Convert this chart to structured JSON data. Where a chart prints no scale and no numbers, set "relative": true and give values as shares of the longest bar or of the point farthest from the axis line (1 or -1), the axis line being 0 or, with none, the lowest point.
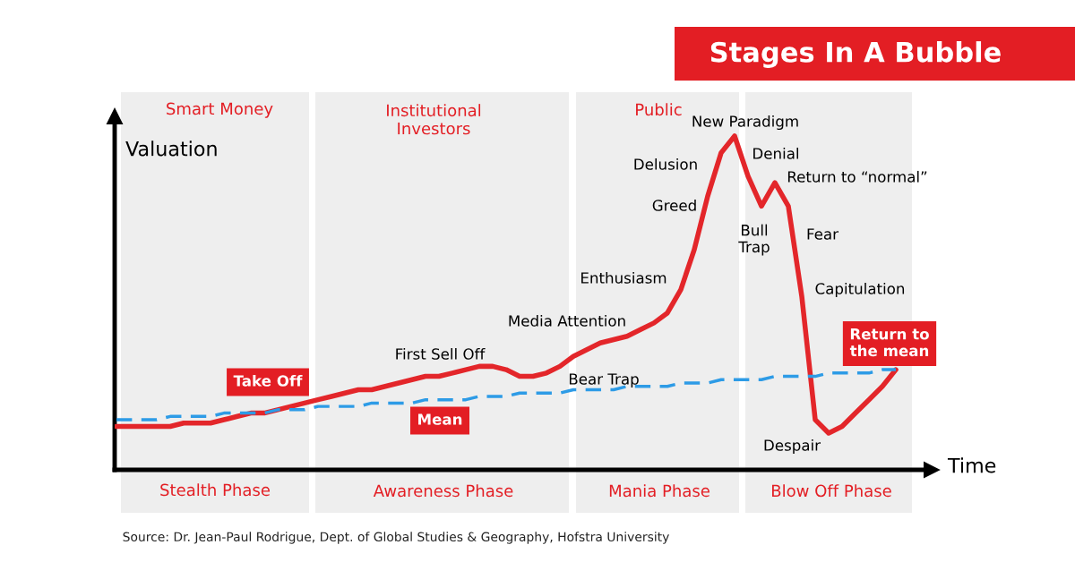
{
  "chart_data": {
    "type": "line",
    "relative": true,
    "title": "Stages In A Bubble",
    "xlabel": "Time",
    "ylabel": "Valuation",
    "categories": [
      null,
      null,
      null,
      null,
      null,
      null,
      null,
      null,
      null,
      null,
      null,
      null,
      null,
      null,
      null,
      null,
      null,
      null,
      null,
      null,
      null,
      null,
      null,
      null,
      null,
      null,
      null,
      null,
      null,
      null,
      null,
      null,
      null,
      null,
      null,
      null,
      null,
      null,
      null,
      null,
      null,
      null,
      null,
      null,
      null,
      null,
      null,
      null,
      null,
      null,
      null,
      null,
      null,
      null,
      null,
      null,
      null,
      null,
      null
    ],
    "series": [
      {
        "color": "#e3262a",
        "line_style": "solid",
        "values": [
          0.13,
          0.13,
          0.13,
          0.13,
          0.13,
          0.14,
          0.14,
          0.14,
          0.15,
          0.16,
          0.17,
          0.17,
          0.18,
          0.19,
          0.2,
          0.21,
          0.22,
          0.23,
          0.24,
          0.24,
          0.25,
          0.26,
          0.27,
          0.28,
          0.28,
          0.29,
          0.3,
          0.31,
          0.31,
          0.3,
          0.28,
          0.28,
          0.29,
          0.31,
          0.34,
          0.36,
          0.38,
          0.39,
          0.4,
          0.42,
          0.44,
          0.47,
          0.54,
          0.66,
          0.82,
          0.95,
          1.0,
          0.88,
          0.79,
          0.86,
          0.79,
          0.52,
          0.15,
          0.11,
          0.13,
          0.17,
          0.21,
          0.25,
          0.3
        ]
      },
      {
        "color": "#2d9be6",
        "line_style": "dashed",
        "values": [
          0.15,
          0.15,
          0.15,
          0.15,
          0.16,
          0.16,
          0.16,
          0.16,
          0.17,
          0.17,
          0.17,
          0.17,
          0.18,
          0.18,
          0.18,
          0.19,
          0.19,
          0.19,
          0.19,
          0.2,
          0.2,
          0.2,
          0.2,
          0.21,
          0.21,
          0.21,
          0.21,
          0.22,
          0.22,
          0.22,
          0.23,
          0.23,
          0.23,
          0.23,
          0.24,
          0.24,
          0.24,
          0.24,
          0.25,
          0.25,
          0.25,
          0.25,
          0.26,
          0.26,
          0.26,
          0.27,
          0.27,
          0.27,
          0.27,
          0.28,
          0.28,
          0.28,
          0.28,
          0.29,
          0.29,
          0.29,
          0.29,
          0.3,
          0.3
        ]
      }
    ],
    "annotations": [
      "Smart Money",
      "Institutional\nInvestors",
      "Public",
      "New Paradigm",
      "Delusion",
      "Denial",
      "Return to “normal”",
      "Greed",
      "Bull\nTrap",
      "Fear",
      "Enthusiasm",
      "Capitulation",
      "Media Attention",
      "First Sell Off",
      "Bear Trap",
      "Take Off",
      "Return to\nthe mean",
      "Mean",
      "Despair",
      "Stealth Phase",
      "Awareness Phase",
      "Mania Phase",
      "Blow Off Phase",
      "Source: Dr. Jean-Paul Rodrigue, Dept. of Global Studies & Geography, Hofstra University"
    ]
  }
}
